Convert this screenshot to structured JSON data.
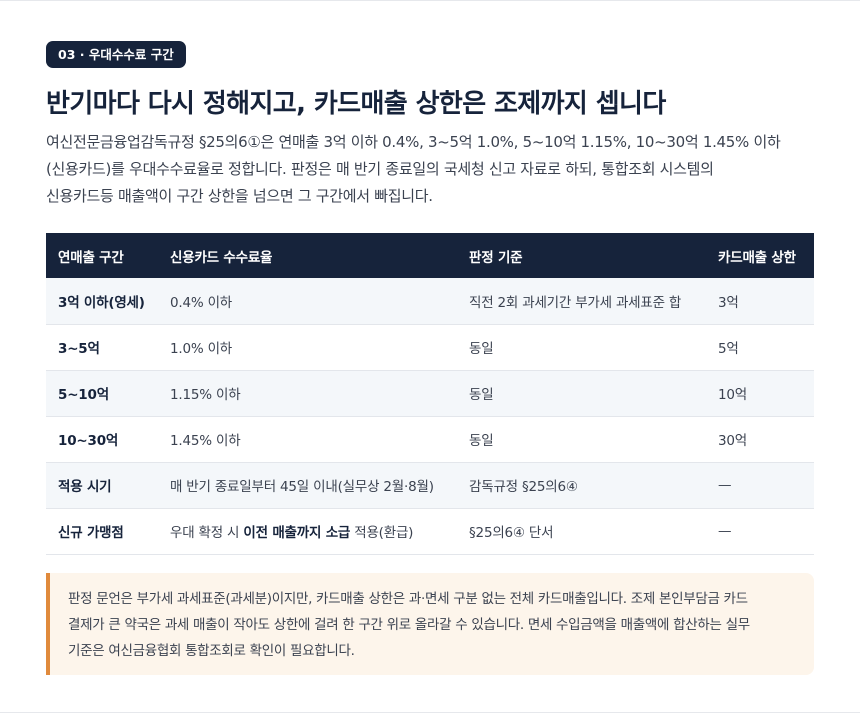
{
  "section": {
    "badge": "03 · 우대수수료 구간"
  },
  "title": "반기마다 다시 정해지고, 카드매출 상한은 조제까지 셉니다",
  "intro": {
    "lines": [
      "여신전문금융업감독규정 §25의6①은 연매출 3억 이하 0.4%, 3~5억 1.0%, 5~10억 1.15%, 10~30억 1.45% 이하",
      "(신용카드)를 우대수수료율로 정합니다. 판정은 매 반기 종료일의 국세청 신고 자료로 하되, 통합조회 시스템의",
      "신용카드등 매출액이 구간 상한을 넘으면 그 구간에서 빠집니다."
    ]
  },
  "table": {
    "headers": [
      "연매출 구간",
      "신용카드 수수료율",
      "판정 기준",
      "카드매출 상한"
    ],
    "rows": [
      {
        "segment": "3억 이하(영세)",
        "rate": "0.4% 이하",
        "basis": "직전 2회 과세기간 부가세 과세표준 합",
        "cap": "3억"
      },
      {
        "segment": "3~5억",
        "rate": "1.0% 이하",
        "basis": "동일",
        "cap": "5억"
      },
      {
        "segment": "5~10억",
        "rate": "1.15% 이하",
        "basis": "동일",
        "cap": "10억"
      },
      {
        "segment": "10~30억",
        "rate": "1.45% 이하",
        "basis": "동일",
        "cap": "30억"
      },
      {
        "segment": "적용 시기",
        "rate": "매 반기 종료일부터 45일 이내(실무상 2월·8월)",
        "basis": "감독규정 §25의6④",
        "cap": "—"
      }
    ],
    "last_row": {
      "segment": "신규 가맹점",
      "rate_prefix": "우대 확정 시 ",
      "rate_emphasis": "이전 매출까지 소급",
      "rate_suffix": " 적용(환급)",
      "basis": "§25의6④ 단서",
      "cap": "—"
    }
  },
  "note": {
    "lines": [
      "판정 문언은 부가세 과세표준(과세분)이지만, 카드매출 상한은 과·면세 구분 없는 전체 카드매출입니다. 조제 본인부담금 카드",
      "결제가 큰 약국은 과세 매출이 작아도 상한에 걸려 한 구간 위로 올라갈 수 있습니다. 면세 수입금액을 매출액에 합산하는 실무",
      "기준은 여신금융협회 통합조회로 확인이 필요합니다."
    ]
  },
  "colors": {
    "navy": "#16233b",
    "note_accent": "#e08a3c",
    "note_bg": "#fdf5eb",
    "row_stripe": "#f4f7fa"
  }
}
